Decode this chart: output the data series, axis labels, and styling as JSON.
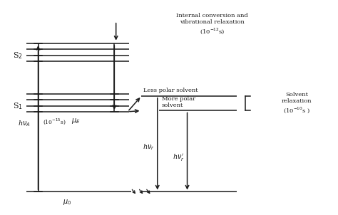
{
  "bg_color": "#ffffff",
  "line_color": "#1a1a1a",
  "S2_label": "S$_2$",
  "S1_label": "S$_1$",
  "mu_e_label": "$\\mu_E$",
  "mu_0_label": "$\\mu_0$",
  "hv_A_label": "h$\\nu_A$",
  "hv_r_label": "h$\\nu_r$",
  "hv_r_prime_label": "h$\\nu_r^{\\prime}$",
  "internal_conv_label": "Internal conversion and\nvibrational relaxation\n(10$^{-12}$s)",
  "solvent_relax_label": "Solvent\nrelaxation\n(10$^{-10}$s )",
  "time_label": "(10$^{-15}$s)",
  "less_polar_label": "Less polar solvent",
  "more_polar_label": "More polar\nsolvent",
  "figsize": [
    4.74,
    3.02
  ],
  "dpi": 100,
  "xlim": [
    0,
    10
  ],
  "ylim": [
    0,
    10
  ]
}
